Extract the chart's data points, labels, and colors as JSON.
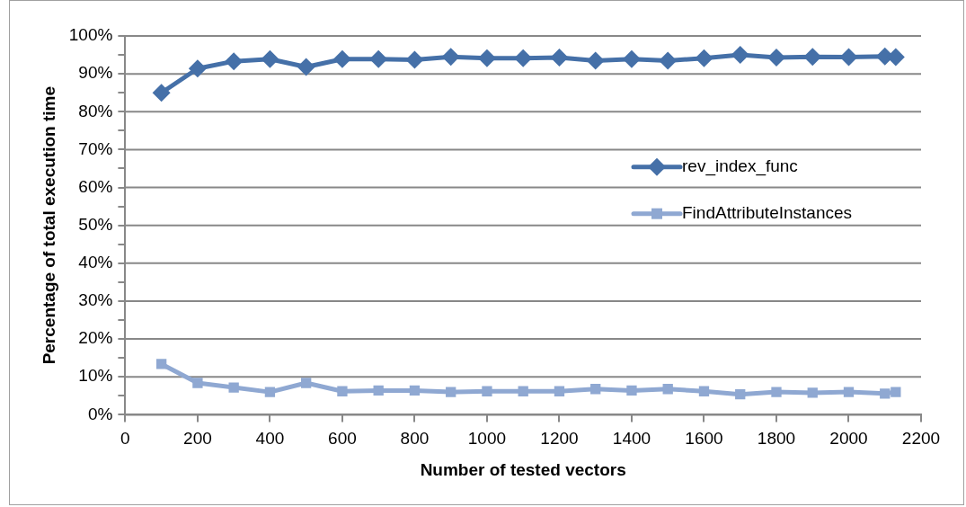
{
  "chart_data": {
    "type": "line",
    "xlabel": "Number of tested vectors",
    "ylabel": "Percentage of total execution time",
    "xlim": [
      0,
      2200
    ],
    "xticks": [
      0,
      200,
      400,
      600,
      800,
      1000,
      1200,
      1400,
      1600,
      1800,
      2000,
      2200
    ],
    "ylim": [
      0,
      100
    ],
    "yticks": [
      {
        "value": 0,
        "label": "0%"
      },
      {
        "value": 5,
        "label": null
      },
      {
        "value": 10,
        "label": "10%"
      },
      {
        "value": 15,
        "label": null
      },
      {
        "value": 20,
        "label": "20%"
      },
      {
        "value": 25,
        "label": null
      },
      {
        "value": 30,
        "label": "30%"
      },
      {
        "value": 35,
        "label": null
      },
      {
        "value": 40,
        "label": "40%"
      },
      {
        "value": 45,
        "label": null
      },
      {
        "value": 50,
        "label": "50%"
      },
      {
        "value": 55,
        "label": null
      },
      {
        "value": 60,
        "label": "60%"
      },
      {
        "value": 65,
        "label": null
      },
      {
        "value": 70,
        "label": "70%"
      },
      {
        "value": 75,
        "label": null
      },
      {
        "value": 80,
        "label": "80%"
      },
      {
        "value": 85,
        "label": null
      },
      {
        "value": 90,
        "label": "90%"
      },
      {
        "value": 95,
        "label": null
      },
      {
        "value": 100,
        "label": "100%"
      }
    ],
    "x": [
      100,
      200,
      300,
      400,
      500,
      600,
      700,
      800,
      900,
      1000,
      1100,
      1200,
      1300,
      1400,
      1500,
      1600,
      1700,
      1800,
      1900,
      2000,
      2100,
      2130
    ],
    "series": [
      {
        "name": "rev_index_func",
        "color": "#4570a8",
        "marker": "diamond",
        "values": [
          85.0,
          91.4,
          93.3,
          93.9,
          91.8,
          93.9,
          93.9,
          93.7,
          94.5,
          94.1,
          94.1,
          94.3,
          93.5,
          93.9,
          93.5,
          94.1,
          95.0,
          94.3,
          94.5,
          94.4,
          94.6,
          94.4
        ]
      },
      {
        "name": "FindAttributeInstances",
        "color": "#8fa8d2",
        "marker": "square",
        "values": [
          13.4,
          8.4,
          7.2,
          6.0,
          8.4,
          6.2,
          6.4,
          6.4,
          6.0,
          6.2,
          6.2,
          6.2,
          6.8,
          6.4,
          6.8,
          6.2,
          5.4,
          6.0,
          5.8,
          6.0,
          5.6,
          6.0
        ]
      }
    ],
    "grid": "y",
    "legend": "right",
    "line_style": "solid"
  }
}
